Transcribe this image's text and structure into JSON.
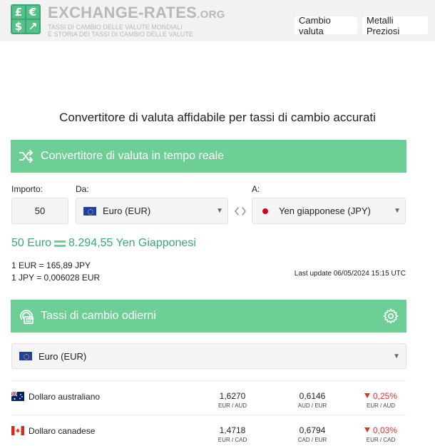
{
  "header": {
    "logo_glyphs": [
      "£",
      "€",
      "$",
      "↗"
    ],
    "brand_name": "EXCHANGE-RATES",
    "brand_tld": ".ORG",
    "tagline_1": "TASSI DI CAMBIO DELLE VALUTE MONDIALI",
    "tagline_2": "E STORIA DEI TASSI DI CAMBIO DELLE VALUTE",
    "nav": [
      "Cambio valuta",
      "Metalli Preziosi"
    ]
  },
  "hero_title": "Convertitore di valuta affidabile per tassi di cambio accurati",
  "converter": {
    "title": "Convertitore di valuta in tempo reale",
    "amount_label": "Importo:",
    "amount_value": "50",
    "from_label": "Da:",
    "from_value": "Euro (EUR)",
    "to_label": "A:",
    "to_value": "Yen giapponese (JPY)",
    "result_from": "50 Euro",
    "result_to": "8.294,55 Yen Giapponesi",
    "rate_1": "1 EUR = 165,89 JPY",
    "rate_2": "1 JPY = 0,006028 EUR",
    "last_update": "Last update 06/05/2024 15:15 UTC"
  },
  "today_rates": {
    "title": "Tassi di cambio odierni",
    "base": "Euro (EUR)",
    "rows": [
      {
        "name": "Dollaro australiano",
        "rate": "1,6270",
        "rate_pair": "EUR / AUD",
        "inverse": "0,6146",
        "inverse_pair": "AUD / EUR",
        "change": "0,25%",
        "change_pair": "EUR / AUD"
      },
      {
        "name": "Dollaro canadese",
        "rate": "1,4718",
        "rate_pair": "EUR / CAD",
        "inverse": "0,6794",
        "inverse_pair": "CAD / EUR",
        "change": "0,03%",
        "change_pair": "EUR / CAD"
      }
    ]
  },
  "colors": {
    "accent": "#6dcf96",
    "accent_text": "#3aa873",
    "negative": "#d9362b"
  }
}
